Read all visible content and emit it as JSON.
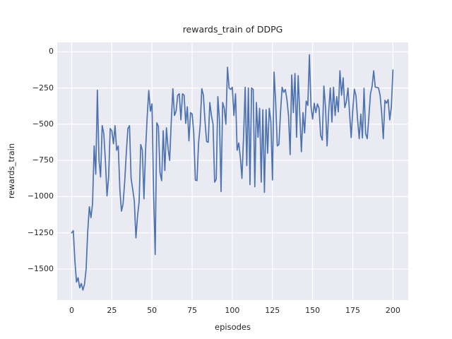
{
  "figure": {
    "title": "rewards_train of DDPG",
    "xlabel": "episodes",
    "ylabel": "rewards_train"
  },
  "chart_data": {
    "type": "line",
    "title": "rewards_train of DDPG",
    "xlabel": "episodes",
    "ylabel": "rewards_train",
    "legend_position": "none",
    "grid": true,
    "style": "seaborn-darkgrid",
    "background_color": "#eaeaf2",
    "grid_color": "#ffffff",
    "line_color": "#4c72b0",
    "text_color": "#262626",
    "xticks": [
      0,
      25,
      50,
      75,
      100,
      125,
      150,
      175,
      200
    ],
    "yticks": [
      0,
      -250,
      -500,
      -750,
      -1000,
      -1250,
      -1500
    ],
    "xlim": [
      -9,
      209.5
    ],
    "ylim": [
      -1715,
      65
    ],
    "x_start": 0,
    "x_step": 1,
    "values": [
      -1250,
      -1235,
      -1440,
      -1590,
      -1560,
      -1630,
      -1600,
      -1645,
      -1605,
      -1500,
      -1240,
      -1070,
      -1145,
      -1050,
      -650,
      -845,
      -265,
      -745,
      -865,
      -510,
      -565,
      -755,
      -995,
      -865,
      -530,
      -545,
      -635,
      -510,
      -680,
      -650,
      -950,
      -1100,
      -1050,
      -900,
      -700,
      -530,
      -510,
      -875,
      -950,
      -1030,
      -1285,
      -1135,
      -1035,
      -640,
      -680,
      -1015,
      -680,
      -450,
      -267,
      -410,
      -360,
      -975,
      -1400,
      -490,
      -515,
      -835,
      -890,
      -545,
      -820,
      -525,
      -665,
      -750,
      -480,
      -255,
      -440,
      -410,
      -300,
      -290,
      -470,
      -290,
      -300,
      -495,
      -380,
      -615,
      -420,
      -430,
      -560,
      -885,
      -890,
      -630,
      -510,
      -255,
      -300,
      -480,
      -620,
      -625,
      -350,
      -440,
      -500,
      -900,
      -880,
      -310,
      -470,
      -965,
      -350,
      -390,
      -500,
      -107,
      -250,
      -260,
      -245,
      -440,
      -290,
      -680,
      -630,
      -727,
      -874,
      -590,
      -245,
      -786,
      -250,
      -917,
      -250,
      -260,
      -932,
      -350,
      -590,
      -390,
      -900,
      -400,
      -970,
      -400,
      -700,
      -390,
      -480,
      -885,
      -140,
      -350,
      -650,
      -640,
      -420,
      -245,
      -280,
      -260,
      -330,
      -440,
      -710,
      -160,
      -420,
      -150,
      -590,
      -165,
      -430,
      -690,
      -420,
      -560,
      -340,
      -370,
      -20,
      -380,
      -465,
      -355,
      -420,
      -360,
      -390,
      -577,
      -610,
      -236,
      -380,
      -650,
      -410,
      -250,
      -485,
      -245,
      -440,
      -310,
      -415,
      -131,
      -300,
      -180,
      -385,
      -345,
      -250,
      -425,
      -592,
      -400,
      -258,
      -305,
      -470,
      -600,
      -430,
      -595,
      -252,
      -565,
      -600,
      -450,
      -290,
      -240,
      -131,
      -245,
      -245,
      -250,
      -300,
      -425,
      -600,
      -335,
      -355,
      -330,
      -470,
      -380,
      -125
    ]
  }
}
